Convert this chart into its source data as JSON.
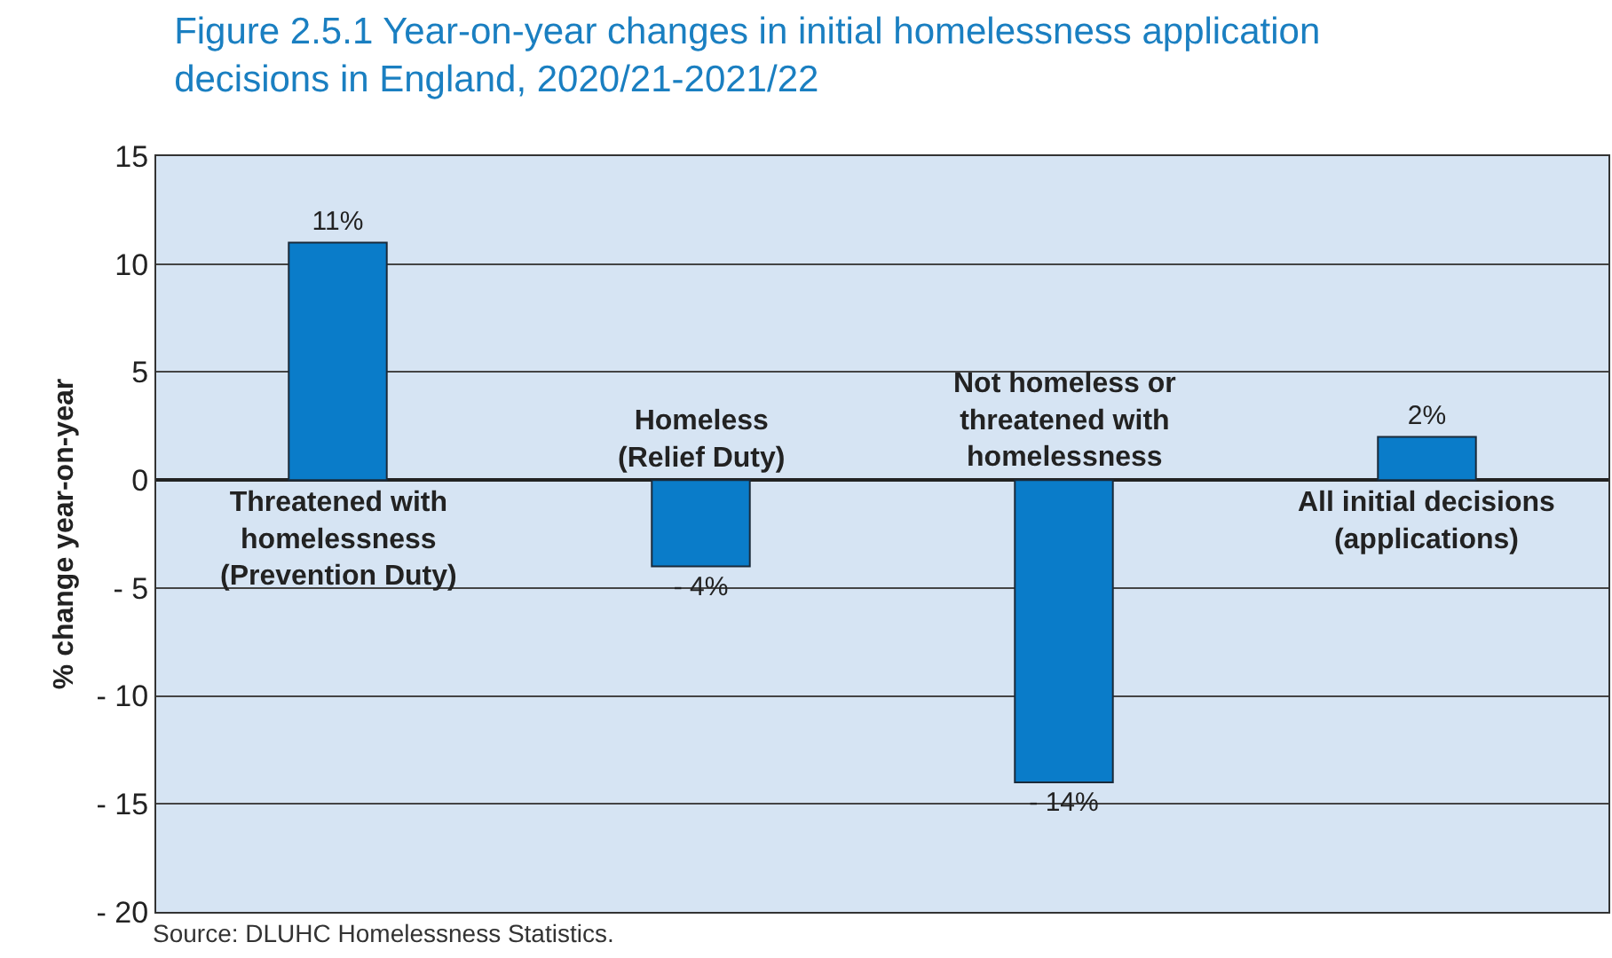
{
  "chart_data": {
    "type": "bar",
    "title": "Figure 2.5.1 Year-on-year changes in initial homelessness application\ndecisions in England, 2020/21-2021/22",
    "ylabel": "% change year-on-year",
    "categories": [
      "Threatened with\nhomelessness\n(Prevention Duty)",
      "Homeless\n(Relief Duty)",
      "Not homeless or\nthreatened with\nhomelessness",
      "All initial decisions\n(applications)"
    ],
    "values": [
      11,
      -4,
      -14,
      2
    ],
    "value_labels": [
      "11%",
      "- 4%",
      "- 14%",
      "2%"
    ],
    "color": "#0a7cc9",
    "ylim": [
      -20,
      15
    ],
    "yticks": [
      15,
      10,
      5,
      0,
      {
        "value": -5,
        "label": "- 5"
      },
      {
        "value": -10,
        "label": "- 10"
      },
      {
        "value": -15,
        "label": "- 15"
      },
      {
        "value": -20,
        "label": "- 20"
      }
    ],
    "grid": "y",
    "tick_labels": "y",
    "annotations": [
      "Source: DLUHC Homelessness Statistics."
    ]
  }
}
